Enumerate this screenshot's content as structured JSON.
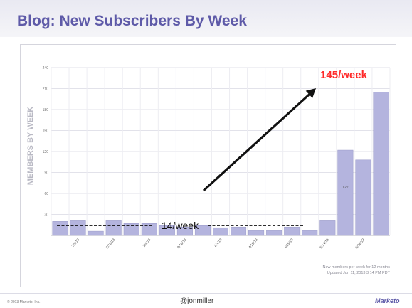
{
  "title": "Blog: New Subscribers By Week",
  "footer": {
    "copyright": "© 2013 Marketo, Inc.",
    "handle": "@jonmiller",
    "logo": "Marketo"
  },
  "colors": {
    "bar": "#b4b4de",
    "bar_stroke": "#9a9ac8",
    "title": "#5e5aa8",
    "highlight": "#ff2a2a",
    "arrow": "#111111"
  },
  "chart_data": {
    "type": "bar",
    "ylabel": "MEMBERS BY WEEK",
    "ylim": [
      0,
      240
    ],
    "yticks": [
      30,
      60,
      90,
      120,
      150,
      180,
      210,
      240
    ],
    "grid": true,
    "x_tick_labels": [
      "2/9/13",
      "2/18/13",
      "3/4/13",
      "3/18/13",
      "4/1/13",
      "4/15/13",
      "4/29/13",
      "5/14/13",
      "5/28/13"
    ],
    "x_tick_after_bar": [
      1,
      3,
      5,
      7,
      9,
      11,
      13,
      15,
      17
    ],
    "values": [
      20,
      22,
      6,
      22,
      17,
      17,
      14,
      12,
      14,
      11,
      12,
      7,
      7,
      12,
      7,
      22,
      122,
      108,
      205
    ],
    "data_labels": [
      {
        "bar": 16,
        "text": "122"
      }
    ],
    "annotations": {
      "baseline_text": "14/week",
      "baseline_value": 14,
      "peak_text": "145/week",
      "note_line1": "New members per week for 12 months",
      "note_line2": "Updated Jun 11, 2013 3:14 PM PDT"
    }
  }
}
